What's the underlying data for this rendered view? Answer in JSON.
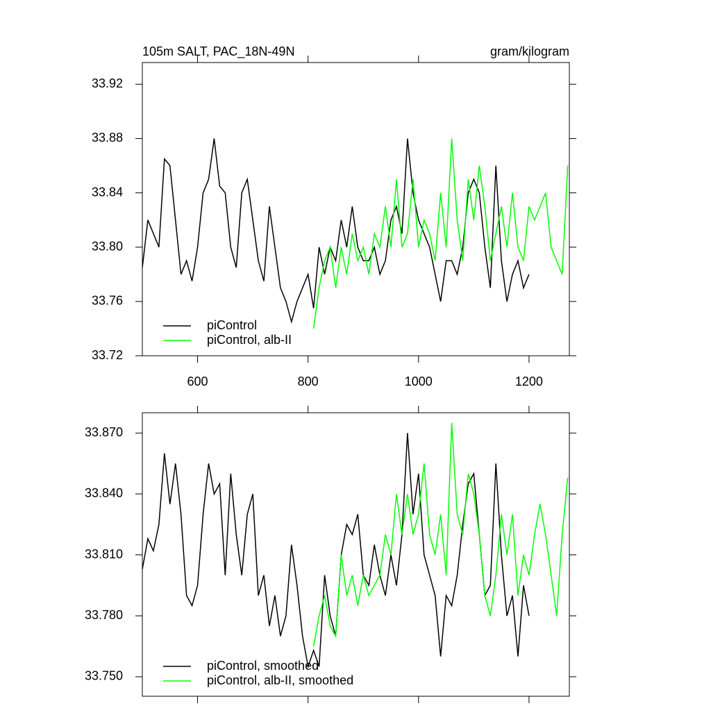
{
  "chart_data": [
    {
      "type": "line",
      "title": "105m SALT, PAC_18N-49N",
      "units": "gram/kilogram",
      "x": [
        500,
        510,
        520,
        530,
        540,
        550,
        560,
        570,
        580,
        590,
        600,
        610,
        620,
        630,
        640,
        650,
        660,
        670,
        680,
        690,
        700,
        710,
        720,
        730,
        740,
        750,
        760,
        770,
        780,
        790,
        800,
        810,
        820,
        830,
        840,
        850,
        860,
        870,
        880,
        890,
        900,
        910,
        920,
        930,
        940,
        950,
        960,
        970,
        980,
        990,
        1000,
        1010,
        1020,
        1030,
        1040,
        1050,
        1060,
        1070,
        1080,
        1090,
        1100,
        1110,
        1120,
        1130,
        1140,
        1150,
        1160,
        1170,
        1180,
        1190,
        1200,
        1210,
        1220,
        1230,
        1240,
        1250,
        1260,
        1270
      ],
      "series": [
        {
          "name": "piControl",
          "color": "#000000",
          "values": [
            33.785,
            33.82,
            33.81,
            33.8,
            33.865,
            33.86,
            33.82,
            33.78,
            33.79,
            33.775,
            33.8,
            33.84,
            33.85,
            33.88,
            33.845,
            33.84,
            33.8,
            33.785,
            33.84,
            33.85,
            33.82,
            33.79,
            33.775,
            33.83,
            33.8,
            33.77,
            33.76,
            33.745,
            33.76,
            33.77,
            33.78,
            33.755,
            33.8,
            33.78,
            33.8,
            33.79,
            33.82,
            33.8,
            33.83,
            33.8,
            33.79,
            33.79,
            33.8,
            33.78,
            33.79,
            33.82,
            33.83,
            33.81,
            33.88,
            33.84,
            33.82,
            33.81,
            33.8,
            33.78,
            33.76,
            33.79,
            33.79,
            33.78,
            33.8,
            33.84,
            33.85,
            33.84,
            33.8,
            33.77,
            33.86,
            33.79,
            33.76,
            33.78,
            33.79,
            33.77,
            33.78,
            null,
            null,
            null,
            null,
            null,
            null,
            null
          ]
        },
        {
          "name": "piControl, alb-II",
          "color": "#00ff00",
          "values": [
            null,
            null,
            null,
            null,
            null,
            null,
            null,
            null,
            null,
            null,
            null,
            null,
            null,
            null,
            null,
            null,
            null,
            null,
            null,
            null,
            null,
            null,
            null,
            null,
            null,
            null,
            null,
            null,
            null,
            null,
            null,
            33.74,
            33.77,
            33.79,
            33.8,
            33.77,
            33.8,
            33.78,
            33.81,
            33.79,
            33.8,
            33.78,
            33.81,
            33.8,
            33.83,
            33.8,
            33.85,
            33.8,
            33.81,
            33.85,
            33.8,
            33.82,
            33.81,
            33.79,
            33.84,
            33.8,
            33.88,
            33.82,
            33.79,
            33.85,
            33.82,
            33.86,
            33.83,
            33.79,
            33.81,
            33.83,
            33.8,
            33.84,
            33.8,
            33.79,
            33.83,
            33.82,
            33.83,
            33.84,
            33.8,
            33.79,
            33.78,
            33.86
          ]
        }
      ],
      "xlim": [
        500,
        1273
      ],
      "xticks": [
        600,
        800,
        1000,
        1200
      ],
      "ylim": [
        33.72,
        33.936
      ],
      "yticks": [
        33.72,
        33.76,
        {
          "value": 33.8,
          "label": "33.80"
        },
        33.84,
        33.88,
        33.92
      ]
    },
    {
      "type": "line",
      "x": [
        500,
        510,
        520,
        530,
        540,
        550,
        560,
        570,
        580,
        590,
        600,
        610,
        620,
        630,
        640,
        650,
        660,
        670,
        680,
        690,
        700,
        710,
        720,
        730,
        740,
        750,
        760,
        770,
        780,
        790,
        800,
        810,
        820,
        830,
        840,
        850,
        860,
        870,
        880,
        890,
        900,
        910,
        920,
        930,
        940,
        950,
        960,
        970,
        980,
        990,
        1000,
        1010,
        1020,
        1030,
        1040,
        1050,
        1060,
        1070,
        1080,
        1090,
        1100,
        1110,
        1120,
        1130,
        1140,
        1150,
        1160,
        1170,
        1180,
        1190,
        1200,
        1210,
        1220,
        1230,
        1240,
        1250,
        1260,
        1270
      ],
      "series": [
        {
          "name": "piControl, smoothed",
          "color": "#000000",
          "values": [
            33.803,
            33.818,
            33.812,
            33.825,
            33.86,
            33.835,
            33.855,
            33.83,
            33.79,
            33.785,
            33.795,
            33.83,
            33.855,
            33.84,
            33.845,
            33.8,
            33.85,
            33.82,
            33.8,
            33.83,
            33.84,
            33.79,
            33.8,
            33.775,
            33.79,
            33.77,
            33.78,
            33.815,
            33.795,
            33.77,
            33.755,
            33.763,
            33.755,
            33.8,
            33.78,
            33.77,
            33.81,
            33.825,
            33.82,
            33.83,
            33.8,
            33.795,
            33.815,
            33.8,
            33.79,
            33.81,
            33.795,
            33.82,
            33.87,
            33.83,
            33.85,
            33.81,
            33.8,
            33.79,
            33.76,
            33.79,
            33.785,
            33.8,
            33.825,
            33.845,
            33.85,
            33.82,
            33.79,
            33.795,
            33.855,
            33.81,
            33.78,
            33.79,
            33.76,
            33.795,
            33.78,
            null,
            null,
            null,
            null,
            null,
            null,
            null
          ]
        },
        {
          "name": "piControl, alb-II, smoothed",
          "color": "#00ff00",
          "values": [
            null,
            null,
            null,
            null,
            null,
            null,
            null,
            null,
            null,
            null,
            null,
            null,
            null,
            null,
            null,
            null,
            null,
            null,
            null,
            null,
            null,
            null,
            null,
            null,
            null,
            null,
            null,
            null,
            null,
            null,
            null,
            33.765,
            33.78,
            33.79,
            33.775,
            33.77,
            33.81,
            33.79,
            33.8,
            33.785,
            33.8,
            33.79,
            33.795,
            33.8,
            33.82,
            33.81,
            33.84,
            33.82,
            33.84,
            33.82,
            33.83,
            33.855,
            33.82,
            33.81,
            33.83,
            33.8,
            33.875,
            33.83,
            33.82,
            33.85,
            33.84,
            33.82,
            33.79,
            33.78,
            33.8,
            33.83,
            33.81,
            33.83,
            33.79,
            33.81,
            33.8,
            33.82,
            33.835,
            33.82,
            33.8,
            33.78,
            33.82,
            33.848
          ]
        }
      ],
      "xlim": [
        500,
        1273
      ],
      "xticks": [
        600,
        800,
        1000,
        1200
      ],
      "ylim": [
        33.7404,
        33.88
      ],
      "yticks": [
        {
          "value": 33.75,
          "label": "33.750"
        },
        {
          "value": 33.78,
          "label": "33.780"
        },
        {
          "value": 33.81,
          "label": "33.810"
        },
        {
          "value": 33.84,
          "label": "33.840"
        },
        {
          "value": 33.87,
          "label": "33.870"
        }
      ]
    }
  ]
}
